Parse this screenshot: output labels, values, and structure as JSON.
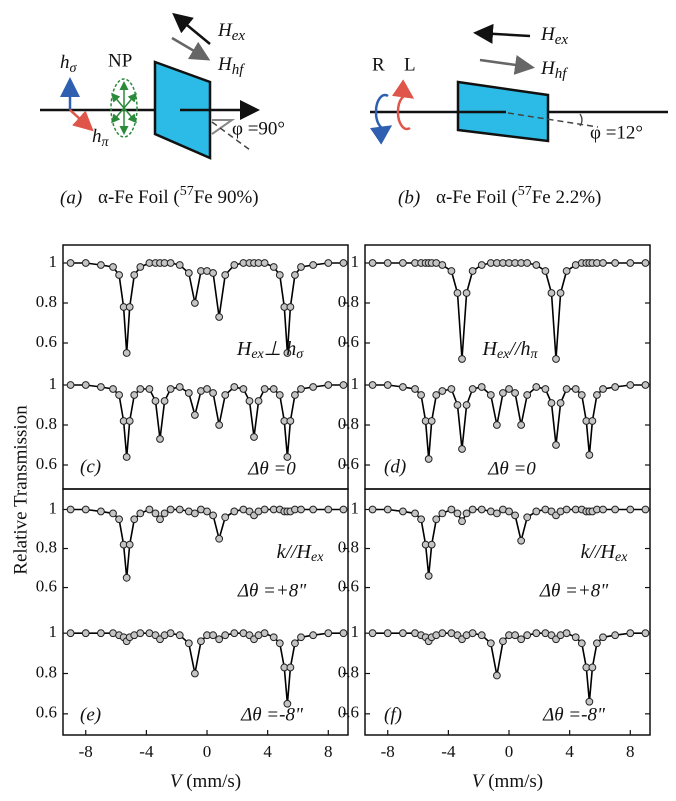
{
  "figure": {
    "y_label": "Relative Transmission",
    "diagram_a": {
      "h_sigma": [
        "h",
        "σ"
      ],
      "np": "NP",
      "h_pi": [
        "h",
        "π"
      ],
      "hex": [
        "H",
        "ex"
      ],
      "hhf": [
        "H",
        "hf"
      ],
      "phi": "φ =90°",
      "label": "(a)",
      "caption": [
        "α-Fe Foil (",
        "57",
        "Fe 90%)"
      ]
    },
    "diagram_b": {
      "r": "R",
      "l": "L",
      "hex": [
        "H",
        "ex"
      ],
      "hhf": [
        "H",
        "hf"
      ],
      "phi": "φ =12°",
      "label": "(b)",
      "caption": [
        "α-Fe Foil (",
        "57",
        "Fe 2.2%)"
      ]
    }
  },
  "chart_data": [
    {
      "type": "line",
      "color": "#000000",
      "marker_fill": "#c4c4c4",
      "xlim": [
        -9.5,
        9.3
      ],
      "ylim": [
        0.5,
        1.09
      ],
      "yticks": [
        1,
        0.8,
        0.6
      ],
      "annotation": [
        "H",
        "ex",
        "⊥ h",
        "σ"
      ],
      "x": [
        -9,
        -8,
        -7,
        -6.2,
        -5.8,
        -5.5,
        -5.3,
        -5.1,
        -4.8,
        -4.4,
        -3.8,
        -3.4,
        -3.1,
        -2.8,
        -2.4,
        -1.8,
        -1.2,
        -0.8,
        -0.4,
        0,
        0.4,
        0.8,
        1.2,
        1.8,
        2.4,
        2.8,
        3.1,
        3.4,
        3.8,
        4.4,
        4.8,
        5.1,
        5.3,
        5.5,
        5.8,
        6.2,
        7,
        8,
        9
      ],
      "values": [
        1,
        1,
        0.99,
        0.98,
        0.94,
        0.78,
        0.55,
        0.78,
        0.94,
        0.98,
        1,
        1,
        1,
        1,
        1,
        0.99,
        0.95,
        0.8,
        0.96,
        0.96,
        0.95,
        0.73,
        0.94,
        0.99,
        1,
        1,
        1,
        1,
        1,
        0.98,
        0.94,
        0.78,
        0.55,
        0.78,
        0.94,
        0.98,
        0.99,
        1,
        1
      ]
    },
    {
      "type": "line",
      "color": "#000000",
      "marker_fill": "#c4c4c4",
      "xlim": [
        -9.5,
        9.3
      ],
      "ylim": [
        0.48,
        1.11
      ],
      "yticks": [
        1,
        0.8,
        0.6
      ],
      "panel_label": "(c)",
      "condition": "Δθ =0",
      "x": [
        -9,
        -8,
        -7,
        -6.2,
        -5.8,
        -5.5,
        -5.3,
        -5.1,
        -4.8,
        -4.4,
        -3.8,
        -3.4,
        -3.1,
        -2.8,
        -2.4,
        -1.8,
        -1.2,
        -0.8,
        -0.4,
        0,
        0.4,
        0.8,
        1.2,
        1.8,
        2.4,
        2.8,
        3.1,
        3.4,
        3.8,
        4.4,
        4.8,
        5.1,
        5.3,
        5.5,
        5.8,
        6.2,
        7,
        8,
        9
      ],
      "values": [
        1,
        1,
        0.99,
        0.98,
        0.95,
        0.82,
        0.64,
        0.82,
        0.95,
        0.98,
        0.98,
        0.92,
        0.73,
        0.92,
        0.98,
        0.99,
        0.96,
        0.85,
        0.97,
        0.98,
        0.96,
        0.8,
        0.95,
        0.99,
        0.98,
        0.92,
        0.74,
        0.92,
        0.98,
        0.98,
        0.95,
        0.82,
        0.64,
        0.82,
        0.95,
        0.98,
        0.99,
        1,
        1
      ]
    },
    {
      "type": "line",
      "color": "#000000",
      "marker_fill": "#c4c4c4",
      "xlim": [
        -9.5,
        9.3
      ],
      "ylim": [
        0.5,
        1.09
      ],
      "yticks": [
        1,
        0.8,
        0.6
      ],
      "annotation": [
        "H",
        "ex",
        "//h",
        "π"
      ],
      "x": [
        -9,
        -8,
        -7,
        -6.2,
        -5.8,
        -5.5,
        -5.3,
        -5.1,
        -4.8,
        -4.4,
        -3.8,
        -3.4,
        -3.1,
        -2.8,
        -2.4,
        -1.8,
        -1.2,
        -0.8,
        -0.4,
        0,
        0.4,
        0.8,
        1.2,
        1.8,
        2.4,
        2.8,
        3.1,
        3.4,
        3.8,
        4.4,
        4.8,
        5.1,
        5.3,
        5.5,
        5.8,
        6.2,
        7,
        8,
        9
      ],
      "values": [
        1,
        1,
        1,
        1,
        1,
        1,
        1,
        1,
        1,
        0.99,
        0.96,
        0.85,
        0.52,
        0.85,
        0.96,
        0.99,
        1,
        1,
        1,
        1,
        1,
        1,
        1,
        0.99,
        0.96,
        0.85,
        0.52,
        0.85,
        0.96,
        0.99,
        1,
        1,
        1,
        1,
        1,
        1,
        1,
        1,
        1
      ]
    },
    {
      "type": "line",
      "color": "#000000",
      "marker_fill": "#c4c4c4",
      "xlim": [
        -9.5,
        9.3
      ],
      "ylim": [
        0.48,
        1.11
      ],
      "yticks": [
        1,
        0.8,
        0.6
      ],
      "panel_label": "(d)",
      "condition": "Δθ =0",
      "x": [
        -9,
        -8,
        -7,
        -6.2,
        -5.8,
        -5.5,
        -5.3,
        -5.1,
        -4.8,
        -4.4,
        -3.8,
        -3.4,
        -3.1,
        -2.8,
        -2.4,
        -1.8,
        -1.2,
        -0.8,
        -0.4,
        0,
        0.4,
        0.8,
        1.2,
        1.8,
        2.4,
        2.8,
        3.1,
        3.4,
        3.8,
        4.4,
        4.8,
        5.1,
        5.3,
        5.5,
        5.8,
        6.2,
        7,
        8,
        9
      ],
      "values": [
        1,
        1,
        0.99,
        0.98,
        0.95,
        0.82,
        0.63,
        0.82,
        0.95,
        0.97,
        0.98,
        0.9,
        0.68,
        0.9,
        0.98,
        0.99,
        0.95,
        0.8,
        0.96,
        0.98,
        0.96,
        0.8,
        0.95,
        0.99,
        0.98,
        0.91,
        0.7,
        0.91,
        0.98,
        0.98,
        0.95,
        0.82,
        0.65,
        0.82,
        0.95,
        0.98,
        0.99,
        1,
        1
      ]
    },
    {
      "type": "line",
      "color": "#000000",
      "marker_fill": "#c4c4c4",
      "xlim": [
        -9.5,
        9.3
      ],
      "ylim": [
        0.485,
        1.105
      ],
      "yticks": [
        1,
        0.8,
        0.6
      ],
      "annotation": [
        "k//H",
        "ex"
      ],
      "condition": "Δθ =+8\"",
      "x": [
        -9,
        -8,
        -7,
        -6.2,
        -5.8,
        -5.5,
        -5.3,
        -5.1,
        -4.8,
        -4.4,
        -3.8,
        -3.4,
        -3.1,
        -2.8,
        -2.4,
        -1.8,
        -1.2,
        -0.8,
        -0.4,
        0,
        0.4,
        0.8,
        1.2,
        1.8,
        2.4,
        2.8,
        3.1,
        3.4,
        3.8,
        4.4,
        4.8,
        5.1,
        5.3,
        5.5,
        5.8,
        6.2,
        7,
        8,
        9
      ],
      "values": [
        1,
        1,
        0.99,
        0.98,
        0.95,
        0.82,
        0.65,
        0.82,
        0.95,
        0.98,
        1,
        0.98,
        0.95,
        0.98,
        1,
        1,
        0.99,
        0.98,
        1,
        0.99,
        0.97,
        0.85,
        0.96,
        0.99,
        1,
        0.99,
        0.97,
        0.99,
        1,
        1,
        1,
        0.99,
        0.99,
        0.99,
        1,
        1,
        1,
        1,
        1
      ]
    },
    {
      "type": "line",
      "color": "#000000",
      "marker_fill": "#c4c4c4",
      "xlim": [
        -9.5,
        9.3
      ],
      "ylim": [
        0.495,
        1.115
      ],
      "yticks": [
        1,
        0.8,
        0.6
      ],
      "xticks": [
        -8,
        -4,
        0,
        4,
        8
      ],
      "x_label": [
        "V",
        " (mm/s)"
      ],
      "panel_label": "(e)",
      "condition": "Δθ =-8\"",
      "x": [
        -9,
        -8,
        -7,
        -6.2,
        -5.8,
        -5.5,
        -5.3,
        -5.1,
        -4.8,
        -4.4,
        -3.8,
        -3.4,
        -3.1,
        -2.8,
        -2.4,
        -1.8,
        -1.2,
        -0.8,
        -0.4,
        0,
        0.4,
        0.8,
        1.2,
        1.8,
        2.4,
        2.8,
        3.1,
        3.4,
        3.8,
        4.4,
        4.8,
        5.1,
        5.3,
        5.5,
        5.8,
        6.2,
        7,
        8,
        9
      ],
      "values": [
        1,
        1,
        1,
        1,
        0.99,
        0.98,
        0.96,
        0.98,
        0.99,
        1,
        1,
        0.99,
        0.97,
        0.99,
        1,
        0.99,
        0.95,
        0.8,
        0.96,
        0.99,
        0.99,
        0.97,
        0.99,
        1,
        1,
        0.99,
        0.97,
        0.99,
        1,
        0.98,
        0.95,
        0.83,
        0.65,
        0.83,
        0.95,
        0.98,
        0.99,
        1,
        1
      ]
    },
    {
      "type": "line",
      "color": "#000000",
      "marker_fill": "#c4c4c4",
      "xlim": [
        -9.5,
        9.3
      ],
      "ylim": [
        0.485,
        1.105
      ],
      "yticks": [
        1,
        0.8,
        0.6
      ],
      "annotation": [
        "k//H",
        "ex"
      ],
      "condition": "Δθ =+8\"",
      "x": [
        -9,
        -8,
        -7,
        -6.2,
        -5.8,
        -5.5,
        -5.3,
        -5.1,
        -4.8,
        -4.4,
        -3.8,
        -3.4,
        -3.1,
        -2.8,
        -2.4,
        -1.8,
        -1.2,
        -0.8,
        -0.4,
        0,
        0.4,
        0.8,
        1.2,
        1.8,
        2.4,
        2.8,
        3.1,
        3.4,
        3.8,
        4.4,
        4.8,
        5.1,
        5.3,
        5.5,
        5.8,
        6.2,
        7,
        8,
        9
      ],
      "values": [
        1,
        1,
        0.99,
        0.98,
        0.95,
        0.82,
        0.66,
        0.82,
        0.95,
        0.98,
        1,
        0.98,
        0.94,
        0.98,
        1,
        1,
        0.99,
        0.98,
        1,
        0.99,
        0.97,
        0.84,
        0.96,
        0.99,
        1,
        0.99,
        0.97,
        0.99,
        1,
        1,
        1,
        0.99,
        0.99,
        0.99,
        1,
        1,
        1,
        1,
        1
      ]
    },
    {
      "type": "line",
      "color": "#000000",
      "marker_fill": "#c4c4c4",
      "xlim": [
        -9.5,
        9.3
      ],
      "ylim": [
        0.495,
        1.115
      ],
      "yticks": [
        1,
        0.8,
        0.6
      ],
      "xticks": [
        -8,
        -4,
        0,
        4,
        8
      ],
      "x_label": [
        "V",
        " (mm/s)"
      ],
      "panel_label": "(f)",
      "condition": "Δθ =-8\"",
      "x": [
        -9,
        -8,
        -7,
        -6.2,
        -5.8,
        -5.5,
        -5.3,
        -5.1,
        -4.8,
        -4.4,
        -3.8,
        -3.4,
        -3.1,
        -2.8,
        -2.4,
        -1.8,
        -1.2,
        -0.8,
        -0.4,
        0,
        0.4,
        0.8,
        1.2,
        1.8,
        2.4,
        2.8,
        3.1,
        3.4,
        3.8,
        4.4,
        4.8,
        5.1,
        5.3,
        5.5,
        5.8,
        6.2,
        7,
        8,
        9
      ],
      "values": [
        1,
        1,
        1,
        1,
        0.99,
        0.98,
        0.96,
        0.98,
        0.99,
        1,
        1,
        0.99,
        0.97,
        0.99,
        1,
        0.99,
        0.95,
        0.79,
        0.96,
        0.99,
        0.99,
        0.97,
        0.99,
        1,
        1,
        0.99,
        0.97,
        0.99,
        1,
        0.98,
        0.95,
        0.83,
        0.66,
        0.83,
        0.95,
        0.98,
        0.99,
        1,
        1
      ]
    }
  ]
}
